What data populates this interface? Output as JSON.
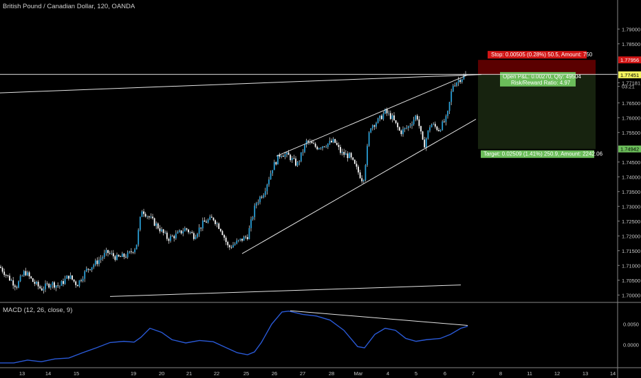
{
  "header": {
    "title": "British Pound / Canadian Dollar, 120, OANDA"
  },
  "macd": {
    "title": "MACD (12, 26, close, 9)",
    "ticks": [
      {
        "label": "0.0050",
        "v": 0.005
      },
      {
        "label": "0.0000",
        "v": 0.0
      }
    ]
  },
  "colors": {
    "up": "#2a9fd6",
    "down": "#ffffff",
    "wick": "#cfcfcf",
    "macd": "#2a5ad8",
    "stop_fill": "#5a0000",
    "target_fill": "#17230f",
    "stop_label": "#d11515",
    "target_label": "#6bbd5a",
    "price_label": "#f2f25e"
  },
  "chart_data": {
    "type": "candlestick",
    "title": "British Pound / Canadian Dollar, 120, OANDA",
    "ylim": [
      1.6975,
      1.7975
    ],
    "y_ticks": [
      {
        "label": "1.79000",
        "v": 1.79
      },
      {
        "label": "1.78500",
        "v": 1.785
      },
      {
        "label": "1.77181",
        "v": 1.77181
      },
      {
        "label": "03:21",
        "v": 1.7706
      },
      {
        "label": "1.76500",
        "v": 1.765
      },
      {
        "label": "1.76000",
        "v": 1.76
      },
      {
        "label": "1.75500",
        "v": 1.755
      },
      {
        "label": "1.74500",
        "v": 1.745
      },
      {
        "label": "1.74000",
        "v": 1.74
      },
      {
        "label": "1.73500",
        "v": 1.735
      },
      {
        "label": "1.73000",
        "v": 1.73
      },
      {
        "label": "1.72500",
        "v": 1.725
      },
      {
        "label": "1.72000",
        "v": 1.72
      },
      {
        "label": "1.71500",
        "v": 1.715
      },
      {
        "label": "1.71000",
        "v": 1.71
      },
      {
        "label": "1.70500",
        "v": 1.705
      },
      {
        "label": "1.70000",
        "v": 1.7
      }
    ],
    "x_ticks": [
      "13",
      "14",
      "15",
      "19",
      "20",
      "21",
      "22",
      "25",
      "26",
      "27",
      "28",
      "Mar",
      "4",
      "5",
      "6",
      "7",
      "8",
      "11",
      "12",
      "13",
      "14"
    ],
    "price_labels": [
      {
        "label": "1.77956",
        "v": 1.77956,
        "kind": "stop"
      },
      {
        "label": "1.77464",
        "v": 1.77464,
        "kind": "line"
      },
      {
        "label": "1.77451",
        "v": 1.77451,
        "kind": "current"
      },
      {
        "label": "1.74942",
        "v": 1.74942,
        "kind": "target"
      }
    ],
    "position": {
      "stop_text": "Stop: 0.00505 (0.28%) 50.5, Amount: 750",
      "pnl_text": "Open P&L: 0.00270, Qty: 49504",
      "rr_text": "Risk/Reward Ratio: 4.97",
      "target_text": "Target: 0.02509 (1.41%) 250.9, Amount: 2242.06",
      "entry": 1.77451,
      "stop": 1.77956,
      "target": 1.74942
    },
    "anchors": [
      [
        0,
        1.7095
      ],
      [
        12,
        1.706
      ],
      [
        24,
        1.703
      ],
      [
        36,
        1.708
      ],
      [
        48,
        1.7045
      ],
      [
        60,
        1.702
      ],
      [
        74,
        1.704
      ],
      [
        86,
        1.703
      ],
      [
        100,
        1.7065
      ],
      [
        112,
        1.7035
      ],
      [
        126,
        1.7085
      ],
      [
        140,
        1.711
      ],
      [
        156,
        1.7145
      ],
      [
        170,
        1.7125
      ],
      [
        186,
        1.7135
      ],
      [
        198,
        1.7165
      ],
      [
        206,
        1.729
      ],
      [
        218,
        1.726
      ],
      [
        230,
        1.723
      ],
      [
        244,
        1.719
      ],
      [
        258,
        1.7205
      ],
      [
        270,
        1.7225
      ],
      [
        282,
        1.72
      ],
      [
        296,
        1.7245
      ],
      [
        310,
        1.726
      ],
      [
        322,
        1.722
      ],
      [
        332,
        1.716
      ],
      [
        346,
        1.718
      ],
      [
        360,
        1.72
      ],
      [
        372,
        1.731
      ],
      [
        384,
        1.735
      ],
      [
        396,
        1.743
      ],
      [
        408,
        1.748
      ],
      [
        420,
        1.747
      ],
      [
        432,
        1.744
      ],
      [
        446,
        1.752
      ],
      [
        460,
        1.75
      ],
      [
        474,
        1.751
      ],
      [
        486,
        1.752
      ],
      [
        496,
        1.748
      ],
      [
        508,
        1.747
      ],
      [
        520,
        1.742
      ],
      [
        528,
        1.7385
      ],
      [
        538,
        1.757
      ],
      [
        550,
        1.759
      ],
      [
        560,
        1.762
      ],
      [
        570,
        1.76
      ],
      [
        582,
        1.755
      ],
      [
        594,
        1.757
      ],
      [
        606,
        1.761
      ],
      [
        616,
        1.75
      ],
      [
        626,
        1.758
      ],
      [
        638,
        1.756
      ],
      [
        650,
        1.76
      ],
      [
        658,
        1.771
      ],
      [
        668,
        1.773
      ],
      [
        678,
        1.7745
      ]
    ],
    "lines": [
      {
        "name": "wedge-upper",
        "p1": [
          402,
          1.747
        ],
        "p2": [
          680,
          1.7745
        ]
      },
      {
        "name": "wedge-lower",
        "p1": [
          352,
          1.714
        ],
        "p2": [
          692,
          1.7595
        ]
      },
      {
        "name": "long-trendline",
        "p1": [
          0,
          1.7684
        ],
        "p2": [
          700,
          1.7746
        ]
      },
      {
        "name": "bottom-trendline",
        "p1": [
          160,
          1.6995
        ],
        "p2": [
          670,
          1.7034
        ]
      }
    ],
    "macd_line": [
      [
        0,
        -0.0045
      ],
      [
        20,
        -0.0045
      ],
      [
        40,
        -0.0038
      ],
      [
        60,
        -0.0042
      ],
      [
        80,
        -0.0035
      ],
      [
        100,
        -0.0033
      ],
      [
        120,
        -0.002
      ],
      [
        140,
        -0.0008
      ],
      [
        160,
        0.0005
      ],
      [
        180,
        0.0008
      ],
      [
        195,
        0.0006
      ],
      [
        205,
        0.0018
      ],
      [
        218,
        0.004
      ],
      [
        235,
        0.003
      ],
      [
        250,
        0.0012
      ],
      [
        270,
        0.0004
      ],
      [
        290,
        0.001
      ],
      [
        310,
        0.0007
      ],
      [
        328,
        -0.0007
      ],
      [
        345,
        -0.002
      ],
      [
        360,
        -0.0025
      ],
      [
        370,
        -0.0018
      ],
      [
        380,
        0.0005
      ],
      [
        395,
        0.005
      ],
      [
        410,
        0.008
      ],
      [
        420,
        0.0082
      ],
      [
        440,
        0.0074
      ],
      [
        460,
        0.007
      ],
      [
        480,
        0.006
      ],
      [
        500,
        0.0035
      ],
      [
        520,
        -0.0005
      ],
      [
        530,
        -0.0008
      ],
      [
        545,
        0.0025
      ],
      [
        560,
        0.004
      ],
      [
        575,
        0.0035
      ],
      [
        590,
        0.0015
      ],
      [
        605,
        0.0008
      ],
      [
        620,
        0.0012
      ],
      [
        640,
        0.0015
      ],
      [
        655,
        0.0025
      ],
      [
        670,
        0.004
      ],
      [
        680,
        0.0045
      ]
    ],
    "macd_ylim": [
      -0.0055,
      0.0095
    ],
    "divergence_line": {
      "p1": [
        422,
        0.0083
      ],
      "p2": [
        680,
        0.0047
      ]
    }
  }
}
